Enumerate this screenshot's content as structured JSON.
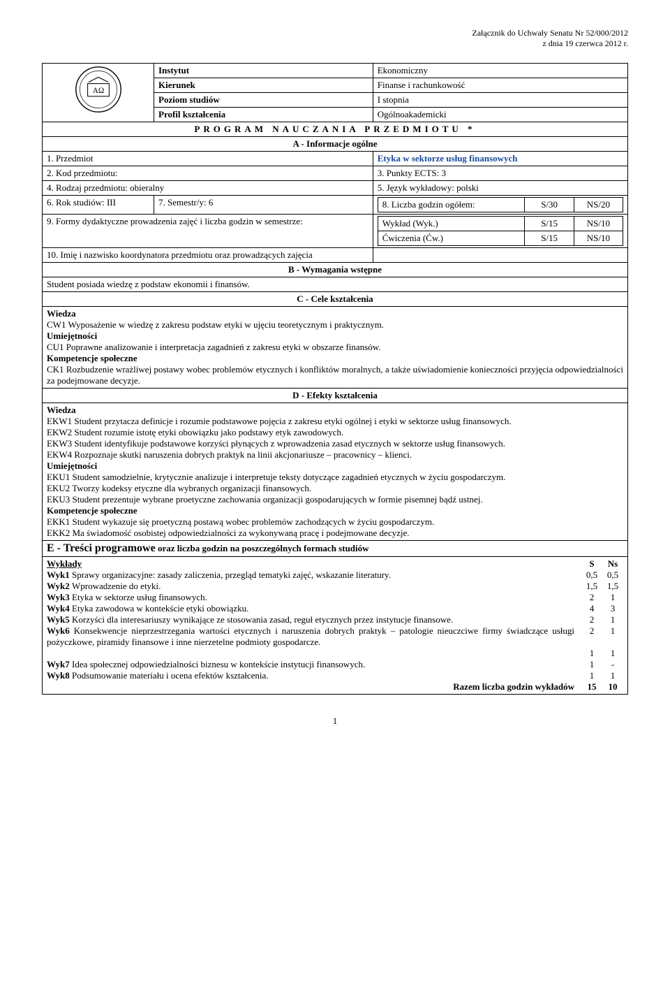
{
  "attachment": {
    "line1": "Załącznik do Uchwały Senatu Nr 52/000/2012",
    "line2": "z dnia 19 czerwca 2012 r."
  },
  "header": {
    "instytut_label": "Instytut",
    "instytut_value": "Ekonomiczny",
    "kierunek_label": "Kierunek",
    "kierunek_value": "Finanse i rachunkowość",
    "poziom_label": "Poziom studiów",
    "poziom_value": "I stopnia",
    "profil_label": "Profil kształcenia",
    "profil_value": "Ogólnoakademicki"
  },
  "program_title": "PROGRAM NAUCZANIA PRZEDMIOTU *",
  "section_a": "A - Informacje ogólne",
  "row1": {
    "label": "1. Przedmiot",
    "value": "Etyka w sektorze usług finansowych"
  },
  "row2": {
    "label": "2. Kod przedmiotu:",
    "value_label": "3. Punkty ECTS: 3"
  },
  "row3": {
    "label": "4. Rodzaj przedmiotu: obieralny",
    "value": "5. Język wykładowy: polski"
  },
  "row4": {
    "c1": "6. Rok studiów: III",
    "c2": "7. Semestr/y: 6",
    "c3": "8. Liczba godzin ogółem:",
    "c3_s": "S/30",
    "c3_ns": "NS/20"
  },
  "row5": {
    "left": "9. Formy dydaktyczne prowadzenia zajęć i liczba godzin w semestrze:",
    "r1_a": "Wykład  (Wyk.)",
    "r1_s": "S/15",
    "r1_ns": "NS/10",
    "r2_a": "Ćwiczenia  (Ćw.)",
    "r2_s": "S/15",
    "r2_ns": "NS/10"
  },
  "row6": {
    "left": "10. Imię i nazwisko koordynatora przedmiotu oraz prowadzących zajęcia"
  },
  "section_b": "B - Wymagania wstępne",
  "b_text": "Student posiada wiedzę z podstaw ekonomii i finansów.",
  "section_c": "C - Cele kształcenia",
  "c_block": {
    "wiedza": "Wiedza",
    "cw1": "CW1 Wyposażenie w wiedzę z zakresu podstaw etyki w ujęciu teoretycznym i praktycznym.",
    "umiej": "Umiejętności",
    "cu1": "CU1 Poprawne analizowanie i interpretacja zagadnień z zakresu etyki w obszarze finansów.",
    "komp": "Kompetencje społeczne",
    "ck1": "CK1 Rozbudzenie wrażliwej postawy wobec problemów etycznych i konfliktów moralnych, a także uświadomienie konieczności przyjęcia odpowiedzialności za podejmowane decyzje."
  },
  "section_d": "D - Efekty kształcenia",
  "d_block": {
    "wiedza": "Wiedza",
    "ekw1": "EKW1 Student przytacza definicje i rozumie podstawowe pojęcia z zakresu etyki ogólnej i etyki w sektorze usług finansowych.",
    "ekw2": "EKW2 Student rozumie istotę etyki obowiązku jako podstawy etyk zawodowych.",
    "ekw3": "EKW3 Student identyfikuje podstawowe korzyści płynących z wprowadzenia zasad etycznych w sektorze usług finansowych.",
    "ekw4": "EKW4 Rozpoznaje skutki naruszenia dobrych praktyk na linii akcjonariusze – pracownicy – klienci.",
    "umiej": "Umiejętności",
    "eku1": "EKU1 Student samodzielnie, krytycznie analizuje i interpretuje teksty dotyczące zagadnień etycznych w życiu gospodarczym.",
    "eku2": "EKU2 Tworzy kodeksy etyczne dla wybranych organizacji finansowych.",
    "eku3": "EKU3 Student prezentuje wybrane proetyczne zachowania organizacji gospodarujących w formie pisemnej bądź ustnej.",
    "komp": "Kompetencje społeczne",
    "ekk1": "EKK1 Student wykazuje się proetyczną postawą wobec problemów zachodzących w życiu gospodarczym.",
    "ekk2": "EKK2 Ma świadomość osobistej odpowiedzialności za wykonywaną pracę i podejmowane decyzje."
  },
  "section_e": {
    "title": "E - Treści programowe",
    "sub": " oraz liczba godzin na poszczególnych formach studiów"
  },
  "e_table": {
    "wyk_header": "Wykłady",
    "s_header": "S",
    "ns_header": "Ns",
    "rows": [
      {
        "text": "Wyk1 Sprawy organizacyjne: zasady zaliczenia, przegląd tematyki zajęć, wskazanie literatury.",
        "s": "0,5",
        "ns": "0,5"
      },
      {
        "text": "Wyk2 Wprowadzenie do etyki.",
        "s": "1,5",
        "ns": "1,5"
      },
      {
        "text": "Wyk3 Etyka w sektorze usług finansowych.",
        "s": "2",
        "ns": "1"
      },
      {
        "text": "Wyk4 Etyka zawodowa w kontekście etyki obowiązku.",
        "s": "4",
        "ns": "3"
      },
      {
        "text": "Wyk5 Korzyści dla interesariuszy wynikające ze stosowania zasad, reguł etycznych przez instytucje finansowe.",
        "s": "2",
        "ns": "1"
      },
      {
        "text": "Wyk6 Konsekwencje nieprzestrzegania wartości etycznych i naruszenia dobrych praktyk – patologie nieuczciwe firmy świadczące usługi pożyczkowe, piramidy finansowe i inne nierzetelne podmioty gospodarcze.",
        "s": "2",
        "ns": "1"
      },
      {
        "text": "",
        "s": "1",
        "ns": "1"
      },
      {
        "text": "Wyk7 Idea społecznej odpowiedzialności biznesu w kontekście instytucji finansowych.",
        "s": "1",
        "ns": "-"
      },
      {
        "text": "Wyk8 Podsumowanie materiału i ocena efektów kształcenia.",
        "s": "1",
        "ns": "1"
      }
    ],
    "total_label": "Razem liczba godzin wykładów",
    "total_s": "15",
    "total_ns": "10"
  },
  "page_num": "1"
}
